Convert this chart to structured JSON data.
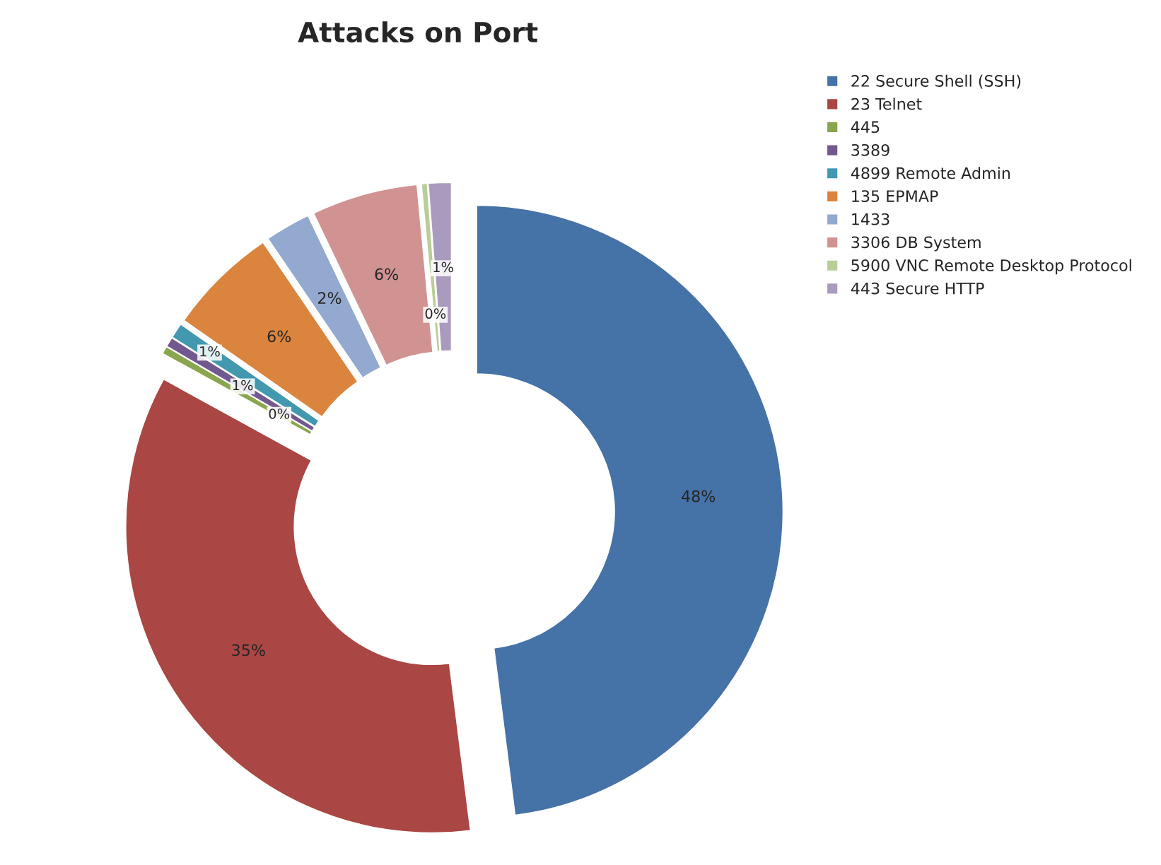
{
  "chart_data": {
    "type": "donut",
    "title": "Attacks on Port",
    "categories": [
      "22 Secure Shell (SSH)",
      "23 Telnet",
      "445",
      "3389",
      "4899 Remote Admin",
      "135 EPMAP",
      "1433",
      "3306 DB System",
      "5900 VNC Remote Desktop Protocol",
      "443 Secure HTTP"
    ],
    "values": [
      48,
      35,
      0.4,
      0.5,
      0.8,
      5.8,
      2.4,
      5.6,
      0.3,
      1.2
    ],
    "value_labels": [
      "48%",
      "35%",
      "0%",
      "1%",
      "1%",
      "6%",
      "2%",
      "6%",
      "0%",
      "1%"
    ],
    "colors": [
      "#4572a7",
      "#aa4643",
      "#89a54e",
      "#71588f",
      "#4198af",
      "#db843d",
      "#93a9cf",
      "#d19392",
      "#b9cd96",
      "#a99bbd"
    ],
    "legend": "right"
  }
}
